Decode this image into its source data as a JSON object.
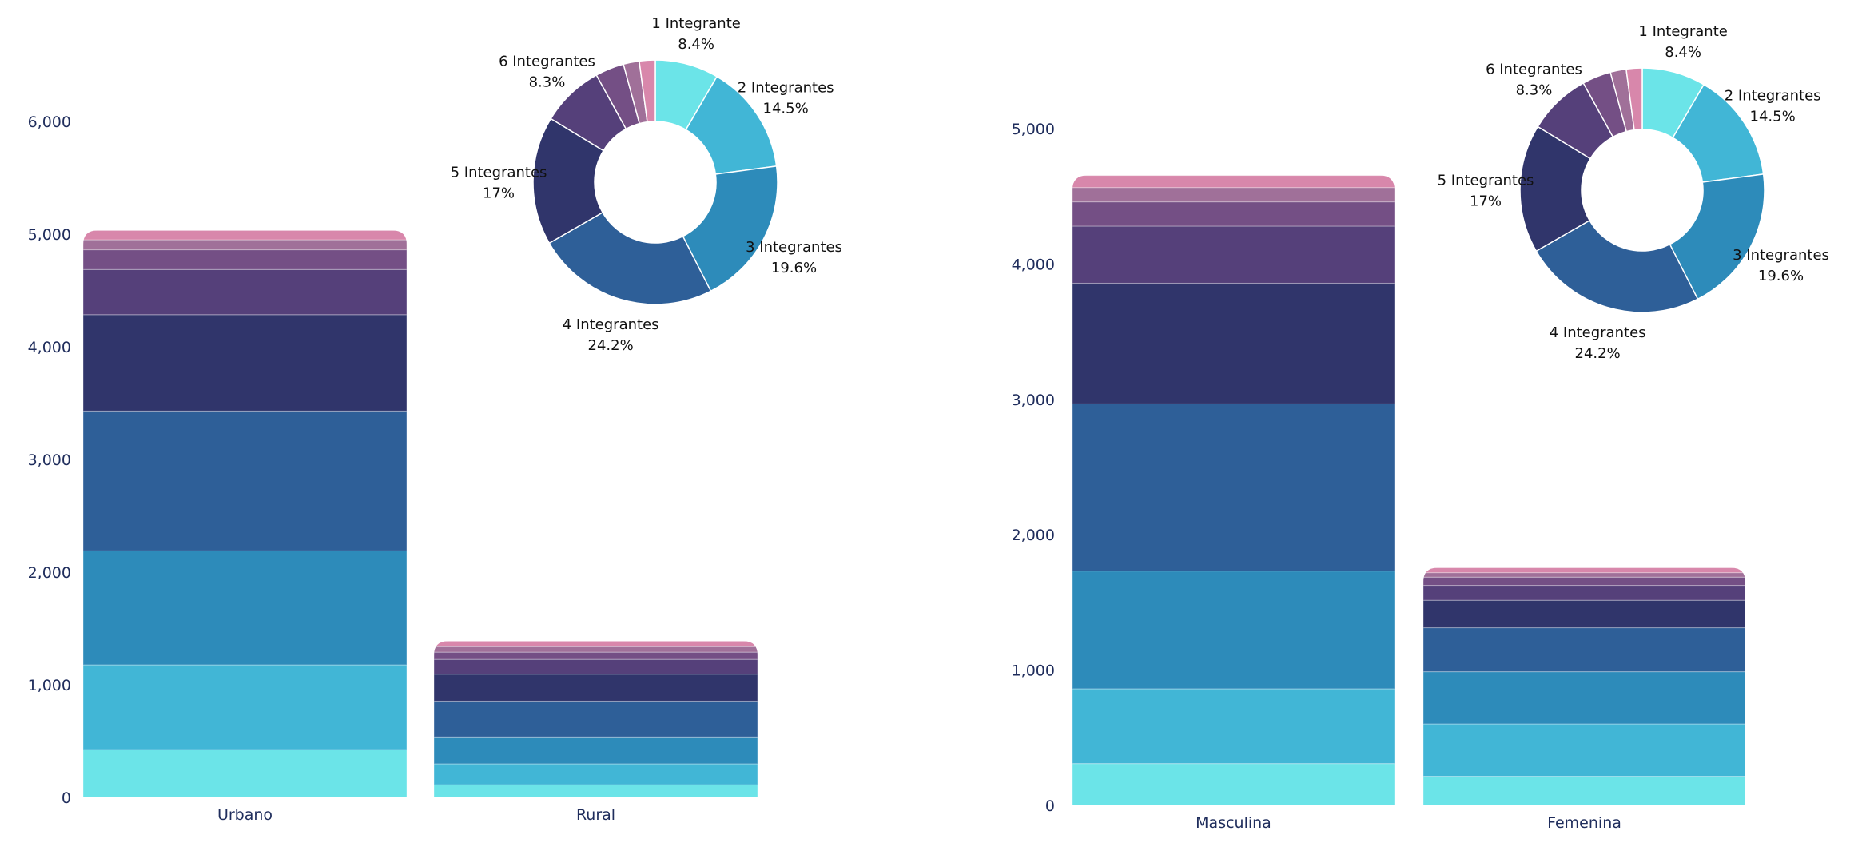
{
  "colors": [
    "#6BE4E8",
    "#41B6D6",
    "#2D8BBA",
    "#2E5F98",
    "#30356B",
    "#55407A",
    "#744F85",
    "#A07099",
    "#D887AB"
  ],
  "chart_data": [
    {
      "type": "bar",
      "stacked": true,
      "title": "",
      "xlabel": "",
      "ylabel": "",
      "categories": [
        "Urbano",
        "Rural"
      ],
      "yticks": [
        "0",
        "1,000",
        "2,000",
        "3,000",
        "4,000",
        "5,000",
        "6,000"
      ],
      "ylim": [
        0,
        6000
      ],
      "series": [
        {
          "name": "1 Integrante",
          "values": [
            425,
            112
          ]
        },
        {
          "name": "2 Integrantes",
          "values": [
            752,
            186
          ]
        },
        {
          "name": "3 Integrantes",
          "values": [
            1012,
            239
          ]
        },
        {
          "name": "4 Integrantes",
          "values": [
            1241,
            318
          ]
        },
        {
          "name": "5 Integrantes",
          "values": [
            855,
            239
          ]
        },
        {
          "name": "6 Integrantes",
          "values": [
            401,
            132
          ]
        },
        {
          "name": "",
          "values": [
            175,
            64
          ]
        },
        {
          "name": "",
          "values": [
            89,
            49
          ]
        },
        {
          "name": "",
          "values": [
            83,
            49
          ]
        }
      ],
      "donut": {
        "type": "pie",
        "slices": [
          {
            "label": "1 Integrante",
            "value": 8.4,
            "pct": "8.4%"
          },
          {
            "label": "2 Integrantes",
            "value": 14.5,
            "pct": "14.5%"
          },
          {
            "label": "3 Integrantes",
            "value": 19.6,
            "pct": "19.6%"
          },
          {
            "label": "4 Integrantes",
            "value": 24.2,
            "pct": "24.2%"
          },
          {
            "label": "5 Integrantes",
            "value": 17,
            "pct": "17%"
          },
          {
            "label": "6 Integrantes",
            "value": 8.3,
            "pct": "8.3%"
          },
          {
            "label": "",
            "value": 3.8,
            "pct": ""
          },
          {
            "label": "",
            "value": 2.1,
            "pct": ""
          },
          {
            "label": "",
            "value": 2.1,
            "pct": ""
          }
        ]
      }
    },
    {
      "type": "bar",
      "stacked": true,
      "title": "",
      "xlabel": "",
      "ylabel": "",
      "categories": [
        "Masculina",
        "Femenina"
      ],
      "yticks": [
        "0",
        "1,000",
        "2,000",
        "3,000",
        "4,000",
        "5,000"
      ],
      "ylim": [
        0,
        5000
      ],
      "series": [
        {
          "name": "1 Integrante",
          "values": [
            309,
            215
          ]
        },
        {
          "name": "2 Integrantes",
          "values": [
            553,
            387
          ]
        },
        {
          "name": "3 Integrantes",
          "values": [
            870,
            386
          ]
        },
        {
          "name": "4 Integrantes",
          "values": [
            1235,
            325
          ]
        },
        {
          "name": "5 Integrantes",
          "values": [
            891,
            203
          ]
        },
        {
          "name": "6 Integrantes",
          "values": [
            422,
            110
          ]
        },
        {
          "name": "",
          "values": [
            179,
            61
          ]
        },
        {
          "name": "",
          "values": [
            106,
            33
          ]
        },
        {
          "name": "",
          "values": [
            89,
            36
          ]
        }
      ],
      "donut": {
        "type": "pie",
        "slices": [
          {
            "label": "1 Integrante",
            "value": 8.4,
            "pct": "8.4%"
          },
          {
            "label": "2 Integrantes",
            "value": 14.5,
            "pct": "14.5%"
          },
          {
            "label": "3 Integrantes",
            "value": 19.6,
            "pct": "19.6%"
          },
          {
            "label": "4 Integrantes",
            "value": 24.2,
            "pct": "24.2%"
          },
          {
            "label": "5 Integrantes",
            "value": 17,
            "pct": "17%"
          },
          {
            "label": "6 Integrantes",
            "value": 8.3,
            "pct": "8.3%"
          },
          {
            "label": "",
            "value": 3.8,
            "pct": ""
          },
          {
            "label": "",
            "value": 2.1,
            "pct": ""
          },
          {
            "label": "",
            "value": 2.1,
            "pct": ""
          }
        ]
      }
    }
  ]
}
